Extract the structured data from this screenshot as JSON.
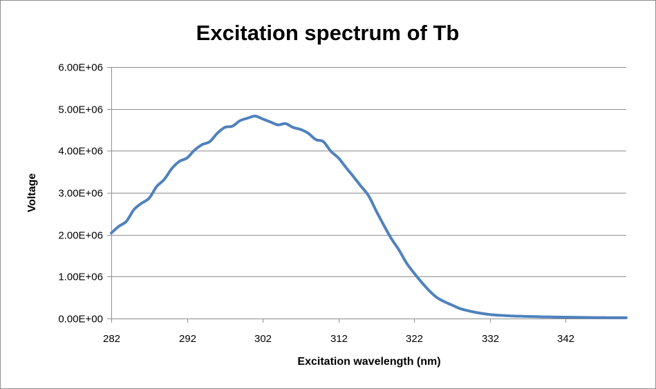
{
  "chart_data": {
    "type": "line",
    "title": "Excitation spectrum of Tb",
    "xlabel": "Excitation wavelength (nm)",
    "ylabel": "Voltage",
    "xlim": [
      282,
      350
    ],
    "ylim": [
      0,
      6000000
    ],
    "x_ticks": [
      282,
      292,
      302,
      312,
      322,
      332,
      342
    ],
    "x_tick_labels": [
      "282",
      "292",
      "302",
      "312",
      "322",
      "332",
      "342"
    ],
    "y_ticks": [
      0,
      1000000,
      2000000,
      3000000,
      4000000,
      5000000,
      6000000
    ],
    "y_tick_labels": [
      "0.00E+00",
      "1.00E+06",
      "2.00E+06",
      "3.00E+06",
      "4.00E+06",
      "5.00E+06",
      "6.00E+06"
    ],
    "grid": "horizontal",
    "legend": "none",
    "line_color": "#4f81bd",
    "series": [
      {
        "x": [
          282,
          283,
          284,
          285,
          286,
          287,
          288,
          289,
          290,
          291,
          292,
          293,
          294,
          295,
          296,
          297,
          298,
          299,
          300,
          301,
          302,
          303,
          304,
          305,
          306,
          307,
          308,
          309,
          310,
          311,
          312,
          313,
          314,
          315,
          316,
          317,
          318,
          319,
          320,
          321,
          322,
          323,
          324,
          325,
          326,
          327,
          328,
          329,
          330,
          331,
          332,
          333,
          334,
          335,
          336,
          337,
          338,
          339,
          340,
          341,
          342,
          343,
          344,
          345,
          346,
          347,
          348,
          349,
          350
        ],
        "values": [
          2040000,
          2200000,
          2320000,
          2600000,
          2750000,
          2870000,
          3150000,
          3320000,
          3580000,
          3750000,
          3830000,
          4020000,
          4150000,
          4220000,
          4420000,
          4560000,
          4590000,
          4720000,
          4780000,
          4830000,
          4760000,
          4690000,
          4620000,
          4650000,
          4560000,
          4510000,
          4420000,
          4270000,
          4220000,
          3990000,
          3830000,
          3600000,
          3380000,
          3150000,
          2920000,
          2560000,
          2220000,
          1900000,
          1630000,
          1320000,
          1080000,
          860000,
          660000,
          500000,
          400000,
          320000,
          240000,
          190000,
          150000,
          120000,
          95000,
          80000,
          70000,
          60000,
          55000,
          50000,
          45000,
          40000,
          37000,
          34000,
          31000,
          29000,
          27000,
          25000,
          23000,
          22000,
          21000,
          20000,
          19000
        ]
      }
    ]
  }
}
